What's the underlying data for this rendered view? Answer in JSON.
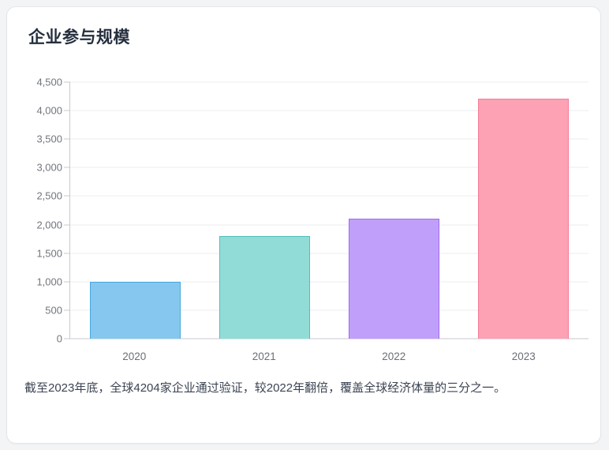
{
  "page": {
    "title": "企业参与规模"
  },
  "description": "截至2023年底，全球4204家企业通过验证，较2022年翻倍，覆盖全球经济体量的三分之一。",
  "chart_data": {
    "type": "bar",
    "title": "企业参与规模",
    "categories": [
      "2020",
      "2021",
      "2022",
      "2023"
    ],
    "values": [
      1000,
      1800,
      2102,
      4204
    ],
    "xlabel": "",
    "ylabel": "",
    "ylim": [
      0,
      4500
    ],
    "ytick_step": 500,
    "ytick_labels": [
      "0",
      "500",
      "1,000",
      "1,500",
      "2,000",
      "2,500",
      "3,000",
      "3,500",
      "4,000",
      "4,500"
    ],
    "grid": true,
    "legend": false,
    "bar_colors": [
      {
        "fill": "#85C7EE",
        "border": "#49A8DE"
      },
      {
        "fill": "#92DCD8",
        "border": "#4FBFBA"
      },
      {
        "fill": "#C09FFA",
        "border": "#9C6BF2"
      },
      {
        "fill": "#FDA1B5",
        "border": "#F97B97"
      }
    ]
  },
  "colors": {
    "page_bg": "#F3F4F6",
    "card_bg": "#FFFFFF",
    "card_border": "#E4E6EB",
    "title_text": "#252F3E",
    "axis_text": "#71767E",
    "grid_line": "#EBECEF",
    "axis_line": "#C8CAD0",
    "body_text": "#3B4453"
  }
}
